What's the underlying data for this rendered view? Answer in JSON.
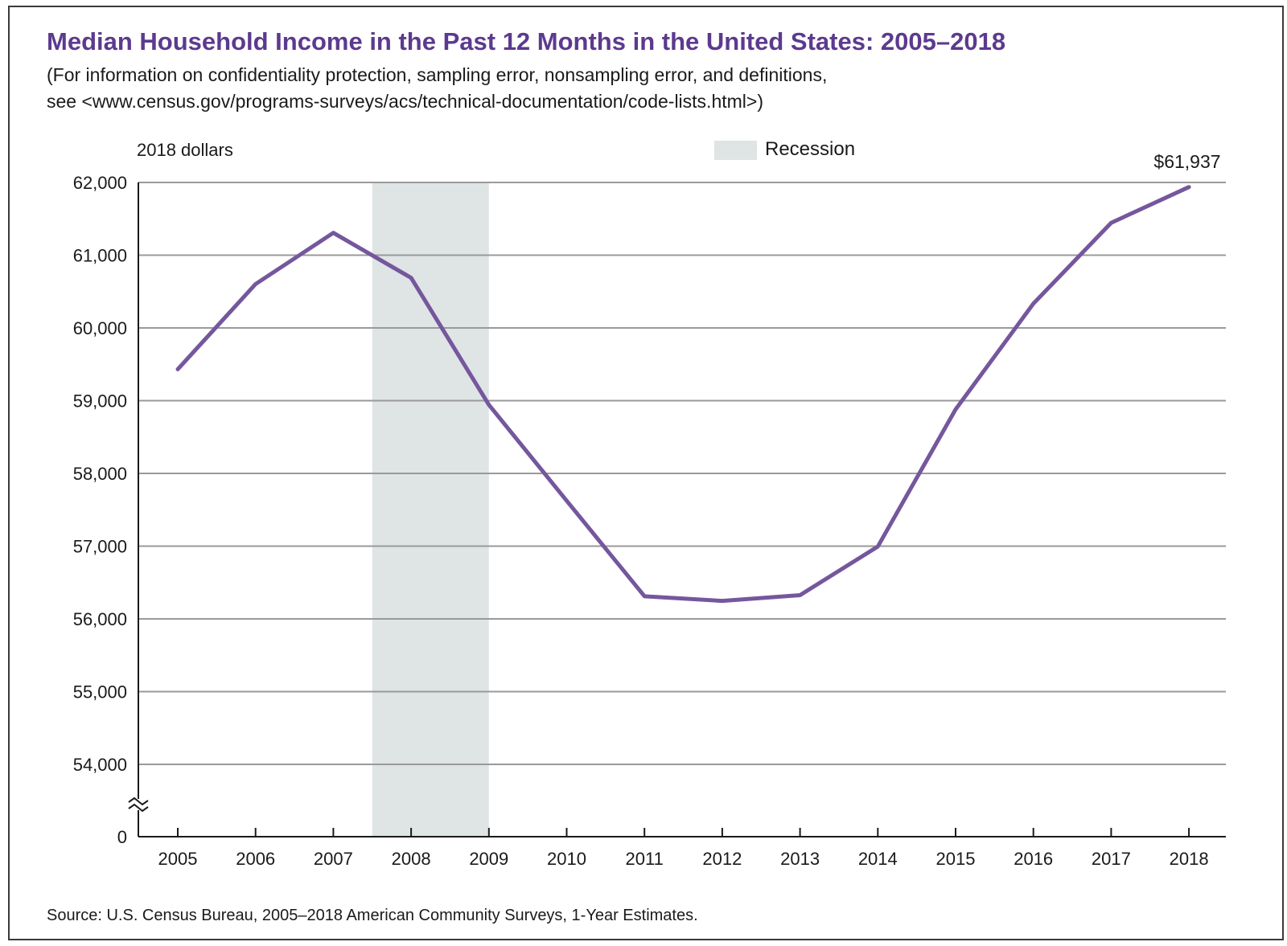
{
  "title": "Median Household Income in the Past 12 Months in the United States: 2005–2018",
  "subtitle_line1": "(For information on confidentiality protection, sampling error, nonsampling error, and definitions,",
  "subtitle_line2": "see <www.census.gov/programs-surveys/acs/technical-documentation/code-lists.html>)",
  "source": "Source: U.S. Census Bureau, 2005–2018 American Community Surveys, 1-Year Estimates.",
  "colors": {
    "title": "#5c3a8e",
    "line": "#75579d",
    "recession": "#dfe4e4",
    "grid": "#9a9a9a",
    "axis": "#1a1a1a"
  },
  "chart_data": {
    "type": "line",
    "ylabel": "2018 dollars",
    "xlabel": "",
    "x": [
      2005,
      2006,
      2007,
      2008,
      2009,
      2010,
      2011,
      2012,
      2013,
      2014,
      2015,
      2016,
      2017,
      2018
    ],
    "series": [
      {
        "values": [
          59432,
          60603,
          61307,
          60689,
          58943,
          57624,
          56311,
          56247,
          56326,
          56995,
          58880,
          60334,
          61445,
          61937
        ]
      }
    ],
    "ylim": [
      54000,
      62000
    ],
    "yticks": [
      0,
      54000,
      55000,
      56000,
      57000,
      58000,
      59000,
      60000,
      61000,
      62000
    ],
    "ytick_labels": [
      "0",
      "54,000",
      "55,000",
      "56,000",
      "57,000",
      "58,000",
      "59,000",
      "60,000",
      "61,000",
      "62,000"
    ],
    "axis_break": true,
    "grid": true,
    "recession": {
      "start": 2007.5,
      "end": 2009,
      "label": "Recession"
    },
    "legend_position": "top-center",
    "annotation": {
      "x": 2018,
      "text": "$61,937"
    }
  }
}
